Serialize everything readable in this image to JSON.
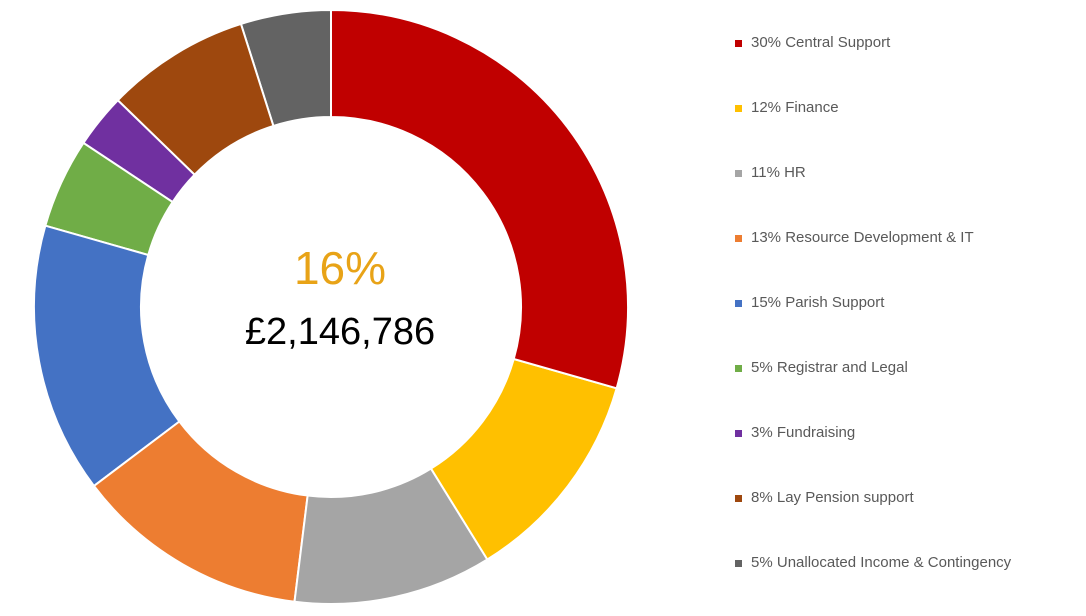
{
  "chart_data": {
    "type": "donut",
    "categories": [
      "Central Support",
      "Finance",
      "HR",
      "Resource Development & IT",
      "Parish Support",
      "Registrar and Legal",
      "Fundraising",
      "Lay Pension support",
      "Unallocated Income & Contingency"
    ],
    "values": [
      30,
      12,
      11,
      13,
      15,
      5,
      3,
      8,
      5
    ],
    "value_labels": [
      "30%",
      "12%",
      "11%",
      "13%",
      "15%",
      "5%",
      "3%",
      "8%",
      "5%"
    ],
    "colors": [
      "#c00000",
      "#ffc000",
      "#a5a5a5",
      "#ed7d31",
      "#4472c4",
      "#70ad47",
      "#7030a0",
      "#9e480e",
      "#636363"
    ],
    "center_label": "16%",
    "center_value": "£2,146,786",
    "legend": "right"
  }
}
